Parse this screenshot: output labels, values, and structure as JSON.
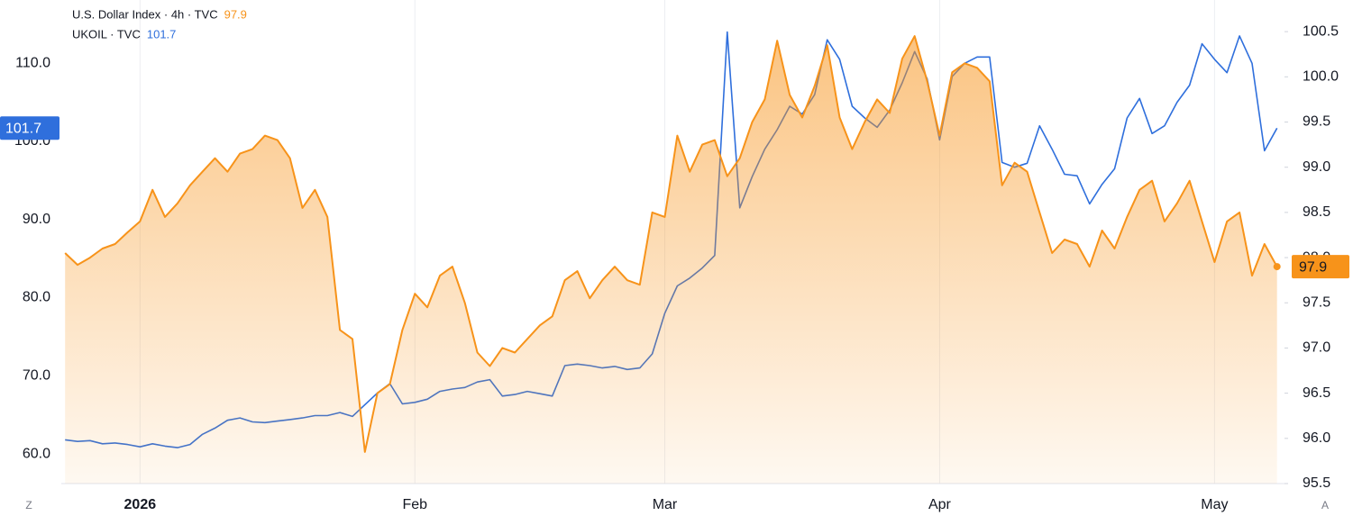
{
  "chart_data": {
    "type": "line",
    "x": [
      -6,
      -5,
      -4,
      -3,
      -2,
      -1,
      0,
      1,
      2,
      3,
      4,
      5,
      6,
      7,
      8,
      9,
      10,
      11,
      12,
      13,
      14,
      15,
      16,
      17,
      18,
      19,
      20,
      21,
      22,
      23,
      24,
      25,
      26,
      27,
      28,
      29,
      30,
      31,
      32,
      33,
      34,
      35,
      36,
      37,
      38,
      39,
      40,
      41,
      42,
      43,
      44,
      45,
      46,
      47,
      48,
      49,
      50,
      51,
      52,
      53,
      54,
      55,
      56,
      57,
      58,
      59,
      60,
      61,
      62,
      63,
      64,
      65,
      66,
      67,
      68,
      69,
      70,
      71,
      72,
      73,
      74,
      75,
      76,
      77,
      78,
      79,
      80,
      81,
      82,
      83,
      84,
      85,
      86,
      87,
      88,
      89,
      90,
      91
    ],
    "xlim": [
      -6.3,
      91.6
    ],
    "xticks": [
      {
        "value": 0,
        "label": "2026"
      },
      {
        "value": 22,
        "label": "Feb"
      },
      {
        "value": 42,
        "label": "Mar"
      },
      {
        "value": 64,
        "label": "Apr"
      },
      {
        "value": 86,
        "label": "May"
      }
    ],
    "ylim": [
      56.2,
      118.1
    ],
    "yticks": [
      {
        "value": 60,
        "label": "60.0"
      },
      {
        "value": 70,
        "label": "70.0"
      },
      {
        "value": 80,
        "label": "80.0"
      },
      {
        "value": 90,
        "label": "90.0"
      },
      {
        "value": 100,
        "label": "100.0"
      },
      {
        "value": 110,
        "label": "110.0"
      }
    ],
    "y2lim": [
      95.5,
      100.85
    ],
    "y2ticks": [
      95.5,
      {
        "value": 96,
        "label": "96.0"
      },
      96.5,
      {
        "value": 97,
        "label": "97.0"
      },
      97.5,
      {
        "value": 98,
        "label": "98.0"
      },
      98.5,
      {
        "value": 99,
        "label": "99.0"
      },
      99.5,
      {
        "value": 100,
        "label": "100.0"
      },
      100.5
    ],
    "grid": true,
    "series": [
      {
        "name": "UKOIL · TVC",
        "color": "#2f6fdc",
        "axis": "y",
        "values": [
          61.8,
          61.6,
          61.7,
          61.3,
          61.4,
          61.2,
          60.9,
          61.3,
          61.0,
          60.8,
          61.2,
          62.5,
          63.3,
          64.3,
          64.6,
          64.1,
          64.0,
          64.2,
          64.4,
          64.6,
          64.9,
          64.9,
          65.3,
          64.8,
          66.3,
          67.8,
          69.0,
          66.4,
          66.6,
          67.0,
          68.0,
          68.3,
          68.5,
          69.2,
          69.5,
          67.4,
          67.6,
          68.0,
          67.7,
          67.4,
          71.3,
          71.5,
          71.3,
          71.0,
          71.2,
          70.8,
          71.0,
          72.8,
          78.0,
          81.5,
          82.5,
          83.8,
          85.4,
          114.0,
          91.5,
          95.5,
          99.0,
          101.5,
          104.5,
          103.5,
          106.0,
          113.0,
          110.5,
          104.5,
          103.0,
          101.8,
          104.0,
          107.5,
          111.5,
          108.0,
          100.2,
          108.3,
          110.0,
          110.8,
          110.8,
          97.3,
          96.7,
          97.2,
          102.0,
          99.0,
          95.8,
          95.6,
          92.0,
          94.5,
          96.5,
          103.0,
          105.5,
          101.0,
          102.0,
          105.0,
          107.2,
          112.5,
          110.5,
          108.8,
          113.5,
          110.0,
          98.8,
          101.7
        ]
      },
      {
        "name": "U.S. Dollar Index · 4h · TVC",
        "color": "#f7931a",
        "axis": "y2",
        "values": [
          98.05,
          97.92,
          98.0,
          98.1,
          98.15,
          98.28,
          98.4,
          98.75,
          98.45,
          98.6,
          98.8,
          98.95,
          99.1,
          98.95,
          99.15,
          99.2,
          99.35,
          99.3,
          99.1,
          98.55,
          98.75,
          98.45,
          97.2,
          97.1,
          95.85,
          96.5,
          96.6,
          97.2,
          97.6,
          97.45,
          97.8,
          97.9,
          97.5,
          96.95,
          96.8,
          97.0,
          96.95,
          97.1,
          97.25,
          97.35,
          97.75,
          97.85,
          97.55,
          97.75,
          97.9,
          97.75,
          97.7,
          98.5,
          98.45,
          99.35,
          98.95,
          99.25,
          99.3,
          98.9,
          99.1,
          99.5,
          99.75,
          100.4,
          99.8,
          99.55,
          99.9,
          100.35,
          99.55,
          99.2,
          99.5,
          99.75,
          99.6,
          100.2,
          100.45,
          99.95,
          99.35,
          100.05,
          100.15,
          100.1,
          99.95,
          98.8,
          99.05,
          98.95,
          98.5,
          98.05,
          98.2,
          98.15,
          97.9,
          98.3,
          98.1,
          98.45,
          98.75,
          98.85,
          98.4,
          98.6,
          98.85,
          98.4,
          97.95,
          98.4,
          98.5,
          97.8,
          98.15,
          97.9
        ]
      }
    ],
    "buttons": {
      "left": "Z",
      "right": "A"
    }
  }
}
